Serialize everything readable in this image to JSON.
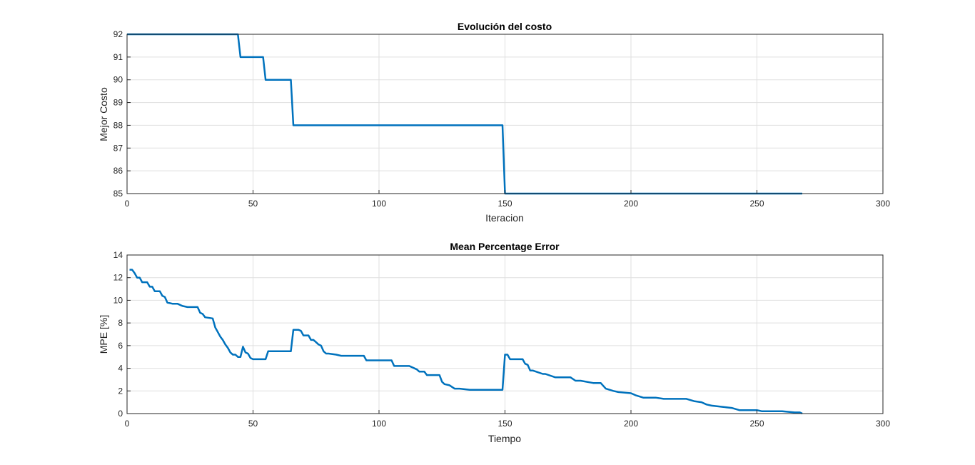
{
  "chart_data": [
    {
      "type": "line",
      "title": "Evolución del costo",
      "xlabel": "Iteracion",
      "ylabel": "Mejor Costo",
      "xlim": [
        0,
        300
      ],
      "ylim": [
        85,
        92
      ],
      "xticks": [
        0,
        50,
        100,
        150,
        200,
        250,
        300
      ],
      "yticks": [
        85,
        86,
        87,
        88,
        89,
        90,
        91,
        92
      ],
      "grid": true,
      "color": "#0072BD",
      "series": [
        {
          "x": [
            0,
            44,
            45,
            54,
            55,
            65,
            66,
            149,
            150,
            268
          ],
          "values": [
            92,
            92,
            91,
            91,
            90,
            90,
            88,
            88,
            85,
            85
          ]
        }
      ]
    },
    {
      "type": "line",
      "title": "Mean Percentage Error",
      "xlabel": "Tiempo",
      "ylabel": "MPE [%]",
      "xlim": [
        0,
        300
      ],
      "ylim": [
        0,
        14
      ],
      "xticks": [
        0,
        50,
        100,
        150,
        200,
        250,
        300
      ],
      "yticks": [
        0,
        2,
        4,
        6,
        8,
        10,
        12,
        14
      ],
      "grid": true,
      "color": "#0072BD",
      "series": [
        {
          "x": [
            1,
            2,
            3,
            4,
            5,
            6,
            7,
            8,
            9,
            10,
            11,
            12,
            13,
            14,
            15,
            16,
            18,
            20,
            22,
            24,
            26,
            28,
            29,
            30,
            31,
            34,
            35,
            36,
            37,
            38,
            39,
            40,
            41,
            42,
            43,
            44,
            45,
            46,
            47,
            48,
            49,
            50,
            55,
            56,
            60,
            65,
            66,
            68,
            69,
            70,
            71,
            72,
            73,
            74,
            75,
            76,
            77,
            78,
            79,
            80,
            83,
            85,
            88,
            90,
            94,
            95,
            100,
            105,
            106,
            110,
            112,
            115,
            116,
            118,
            119,
            121,
            124,
            125,
            126,
            128,
            130,
            132,
            136,
            140,
            149,
            150,
            151,
            152,
            153,
            157,
            158,
            159,
            160,
            161,
            165,
            166,
            170,
            175,
            176,
            178,
            180,
            185,
            187,
            188,
            190,
            193,
            195,
            200,
            202,
            205,
            210,
            213,
            218,
            222,
            225,
            228,
            230,
            232,
            236,
            240,
            243,
            250,
            252,
            255,
            260,
            265,
            267,
            268
          ],
          "values": [
            12.7,
            12.7,
            12.4,
            12.0,
            12.0,
            11.6,
            11.6,
            11.6,
            11.2,
            11.2,
            10.8,
            10.8,
            10.8,
            10.4,
            10.3,
            9.8,
            9.7,
            9.7,
            9.5,
            9.4,
            9.4,
            9.4,
            8.9,
            8.8,
            8.5,
            8.4,
            7.6,
            7.2,
            6.8,
            6.5,
            6.1,
            5.8,
            5.4,
            5.2,
            5.2,
            5.0,
            5.0,
            5.9,
            5.4,
            5.3,
            4.9,
            4.8,
            4.8,
            5.5,
            5.5,
            5.5,
            7.4,
            7.4,
            7.3,
            6.9,
            6.9,
            6.9,
            6.5,
            6.5,
            6.3,
            6.1,
            6.0,
            5.5,
            5.3,
            5.3,
            5.2,
            5.1,
            5.1,
            5.1,
            5.1,
            4.7,
            4.7,
            4.7,
            4.2,
            4.2,
            4.2,
            3.9,
            3.7,
            3.7,
            3.4,
            3.4,
            3.4,
            2.8,
            2.6,
            2.5,
            2.2,
            2.2,
            2.1,
            2.1,
            2.1,
            5.2,
            5.2,
            4.8,
            4.8,
            4.8,
            4.4,
            4.3,
            3.8,
            3.8,
            3.5,
            3.5,
            3.2,
            3.2,
            3.2,
            2.9,
            2.9,
            2.7,
            2.7,
            2.7,
            2.2,
            2.0,
            1.9,
            1.8,
            1.6,
            1.4,
            1.4,
            1.3,
            1.3,
            1.3,
            1.1,
            1.0,
            0.8,
            0.7,
            0.6,
            0.5,
            0.3,
            0.3,
            0.2,
            0.2,
            0.2,
            0.1,
            0.1,
            0.0
          ]
        }
      ]
    }
  ]
}
